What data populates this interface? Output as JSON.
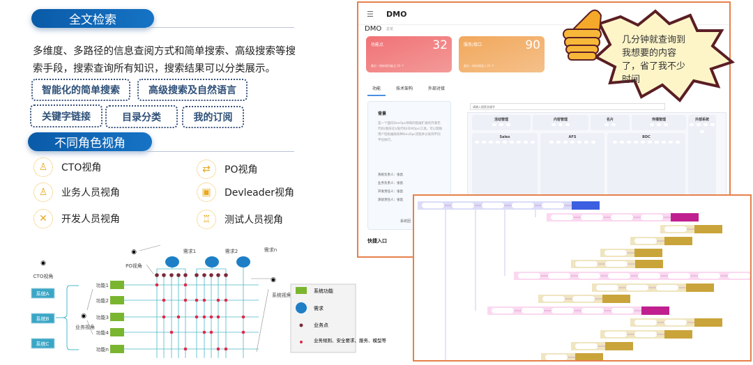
{
  "search_section": {
    "title": "全文检索",
    "description": "多维度、多路径的信息查阅方式和简单搜索、高级搜索等搜索手段，搜索查询所有知识，搜索结果可以分类展示。",
    "tags": [
      "智能化的简单搜索",
      "高级搜索及自然语言",
      "关键字链接",
      "目录分类",
      "我的订阅"
    ]
  },
  "roles_section": {
    "title": "不同角色视角",
    "roles": [
      {
        "label": "CTO视角",
        "icon": "user-icon"
      },
      {
        "label": "PO视角",
        "icon": "transfer-icon"
      },
      {
        "label": "业务人员视角",
        "icon": "user-icon"
      },
      {
        "label": "Devleader视角",
        "icon": "hand-box-icon"
      },
      {
        "label": "开发人员视角",
        "icon": "tools-icon"
      },
      {
        "label": "测试人员视角",
        "icon": "worker-icon"
      }
    ]
  },
  "diagram": {
    "cto_label": "CTO视角",
    "po_label": "PO视角",
    "business_label": "业务视角",
    "system_label": "系统视角",
    "systems": [
      "系统A",
      "系统B",
      "系统C"
    ],
    "needs": [
      "需求1",
      "需求2",
      "需求n"
    ],
    "functions": [
      {
        "label": "功能1",
        "points": [
          0,
          4
        ]
      },
      {
        "label": "功能2",
        "points": [
          1,
          4,
          5,
          6,
          8,
          9
        ]
      },
      {
        "label": "功能3",
        "points": [
          1,
          3,
          5,
          6,
          7,
          8,
          10
        ]
      },
      {
        "label": "功能4",
        "points": [
          2,
          6,
          7,
          10
        ]
      },
      {
        "label": "功能n",
        "points": [
          4,
          8,
          9
        ]
      }
    ],
    "legend": [
      "系统功能",
      "需求",
      "业务点",
      "业务规则、安全要求、服务、模型等"
    ],
    "colors": {
      "function": "#7ab52f",
      "need": "#1e7fc6",
      "business_point": "#7a2a3a",
      "rule": "#e0284a",
      "line": "#4ab8c8"
    }
  },
  "dmo_window": {
    "app_title": "DMO",
    "breadcrumb": "DMO",
    "breadcrumb_sub": "总览",
    "cards": [
      {
        "label": "功能点",
        "value": "32",
        "sub": "最近一周新增功能点 20 个",
        "color": "#ef6f72"
      },
      {
        "label": "服务/接口",
        "value": "90",
        "sub": "最近一周新增接口 20 个",
        "color": "#f2a95f"
      }
    ],
    "tabs": [
      "功能",
      "技术架构",
      "外部对接"
    ],
    "active_tab": "功能",
    "background_title": "背景",
    "background_text": "是一个面向DevOps领域的拓展扩展的开源无代码(图形化)/低代码(DIXOps)工具。可以帮助用户轻松编排各种DevOps流程并分发到不同平台执行。",
    "owners": [
      "系统负责人：张昌",
      "业务负责人：张昌",
      "开发责任人：张昌",
      "测试责任人：张昌"
    ],
    "panel_footer": "系统团",
    "quick_entry": "快捷入口",
    "search_placeholder": "请输入搜索关键字",
    "grid_sections": [
      "活动管理",
      "内容管理",
      "名片",
      "传播管理",
      "外部系统",
      "Sales",
      "AFS",
      "BDC"
    ]
  },
  "bubble": {
    "text": "几分钟就查询到我想要的内容了，省了我不少时间"
  }
}
